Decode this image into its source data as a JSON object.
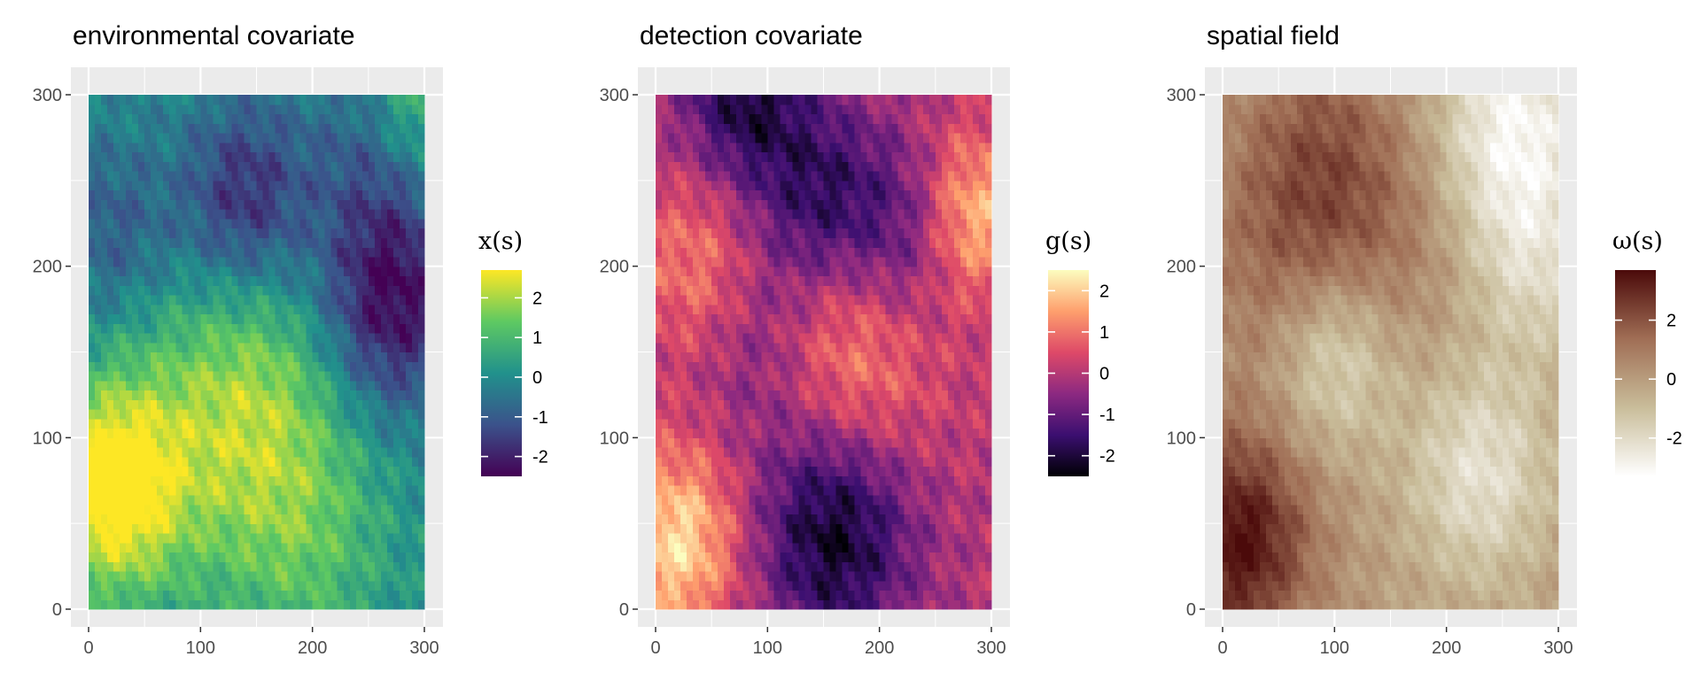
{
  "chart_data": [
    {
      "type": "heatmap",
      "title": "environmental covariate",
      "legend_title": "x(s)",
      "x_ticks": [
        0,
        100,
        200,
        300
      ],
      "y_ticks": [
        0,
        100,
        200,
        300
      ],
      "xlim": [
        0,
        300
      ],
      "ylim": [
        0,
        300
      ],
      "color_scale": "viridis",
      "colors": [
        "#440154",
        "#3b528b",
        "#21918c",
        "#5ec962",
        "#fde725"
      ],
      "value_range": [
        -2.5,
        2.7
      ],
      "legend_ticks": [
        2,
        1,
        0,
        -1,
        -2
      ],
      "legend_placement": "right",
      "grid": true,
      "features": [
        {
          "x": 20,
          "y": 70,
          "value": 2.6,
          "spread": 40
        },
        {
          "x": 150,
          "y": 125,
          "value": 1.5,
          "spread": 55
        },
        {
          "x": 190,
          "y": 45,
          "value": 1.2,
          "spread": 55
        },
        {
          "x": 60,
          "y": 90,
          "value": 1.1,
          "spread": 60
        },
        {
          "x": 290,
          "y": 290,
          "value": 1.5,
          "spread": 35
        },
        {
          "x": 270,
          "y": 180,
          "value": -2.4,
          "spread": 45
        },
        {
          "x": 140,
          "y": 240,
          "value": -1.8,
          "spread": 40
        },
        {
          "x": 20,
          "y": 220,
          "value": -1.0,
          "spread": 40
        },
        {
          "x": 260,
          "y": 270,
          "value": -1.2,
          "spread": 40
        }
      ]
    },
    {
      "type": "heatmap",
      "title": "detection covariate",
      "legend_title": "g(s)",
      "x_ticks": [
        0,
        100,
        200,
        300
      ],
      "y_ticks": [
        0,
        100,
        200,
        300
      ],
      "xlim": [
        0,
        300
      ],
      "ylim": [
        0,
        300
      ],
      "color_scale": "magma",
      "colors": [
        "#000004",
        "#3b0f70",
        "#8c2981",
        "#de4968",
        "#fe9f6d",
        "#fcfdbf"
      ],
      "value_range": [
        -2.5,
        2.5
      ],
      "legend_ticks": [
        2,
        1,
        0,
        -1,
        -2
      ],
      "legend_placement": "right",
      "grid": true,
      "features": [
        {
          "x": 170,
          "y": 140,
          "value": 1.6,
          "spread": 55
        },
        {
          "x": 20,
          "y": 40,
          "value": 2.2,
          "spread": 40
        },
        {
          "x": 280,
          "y": 230,
          "value": 2.1,
          "spread": 35
        },
        {
          "x": 40,
          "y": 200,
          "value": 1.3,
          "spread": 40
        },
        {
          "x": 160,
          "y": 50,
          "value": -2.5,
          "spread": 50
        },
        {
          "x": 80,
          "y": 300,
          "value": -2.0,
          "spread": 40
        },
        {
          "x": 150,
          "y": 240,
          "value": -1.6,
          "spread": 40
        },
        {
          "x": 230,
          "y": 220,
          "value": -1.4,
          "spread": 40
        },
        {
          "x": 90,
          "y": 160,
          "value": -1.0,
          "spread": 45
        }
      ]
    },
    {
      "type": "heatmap",
      "title": "spatial field",
      "legend_title": "ω(s)",
      "x_ticks": [
        0,
        100,
        200,
        300
      ],
      "y_ticks": [
        0,
        100,
        200,
        300
      ],
      "xlim": [
        0,
        300
      ],
      "ylim": [
        0,
        300
      ],
      "color_scale": "white-brown",
      "colors": [
        "#ffffff",
        "#c9bd9a",
        "#a06e55",
        "#4b0a0a"
      ],
      "value_range": [
        -3.3,
        3.7
      ],
      "legend_ticks": [
        2,
        0,
        -2
      ],
      "legend_placement": "right",
      "grid": true,
      "features": [
        {
          "x": 15,
          "y": 40,
          "value": 3.6,
          "spread": 45
        },
        {
          "x": 120,
          "y": 220,
          "value": 1.5,
          "spread": 60
        },
        {
          "x": 80,
          "y": 280,
          "value": 1.0,
          "spread": 50
        },
        {
          "x": 50,
          "y": 200,
          "value": 1.0,
          "spread": 55
        },
        {
          "x": 260,
          "y": 280,
          "value": -3.0,
          "spread": 50
        },
        {
          "x": 100,
          "y": 150,
          "value": -2.4,
          "spread": 40
        },
        {
          "x": 230,
          "y": 80,
          "value": -2.2,
          "spread": 45
        },
        {
          "x": 280,
          "y": 200,
          "value": -1.5,
          "spread": 40
        }
      ]
    }
  ]
}
